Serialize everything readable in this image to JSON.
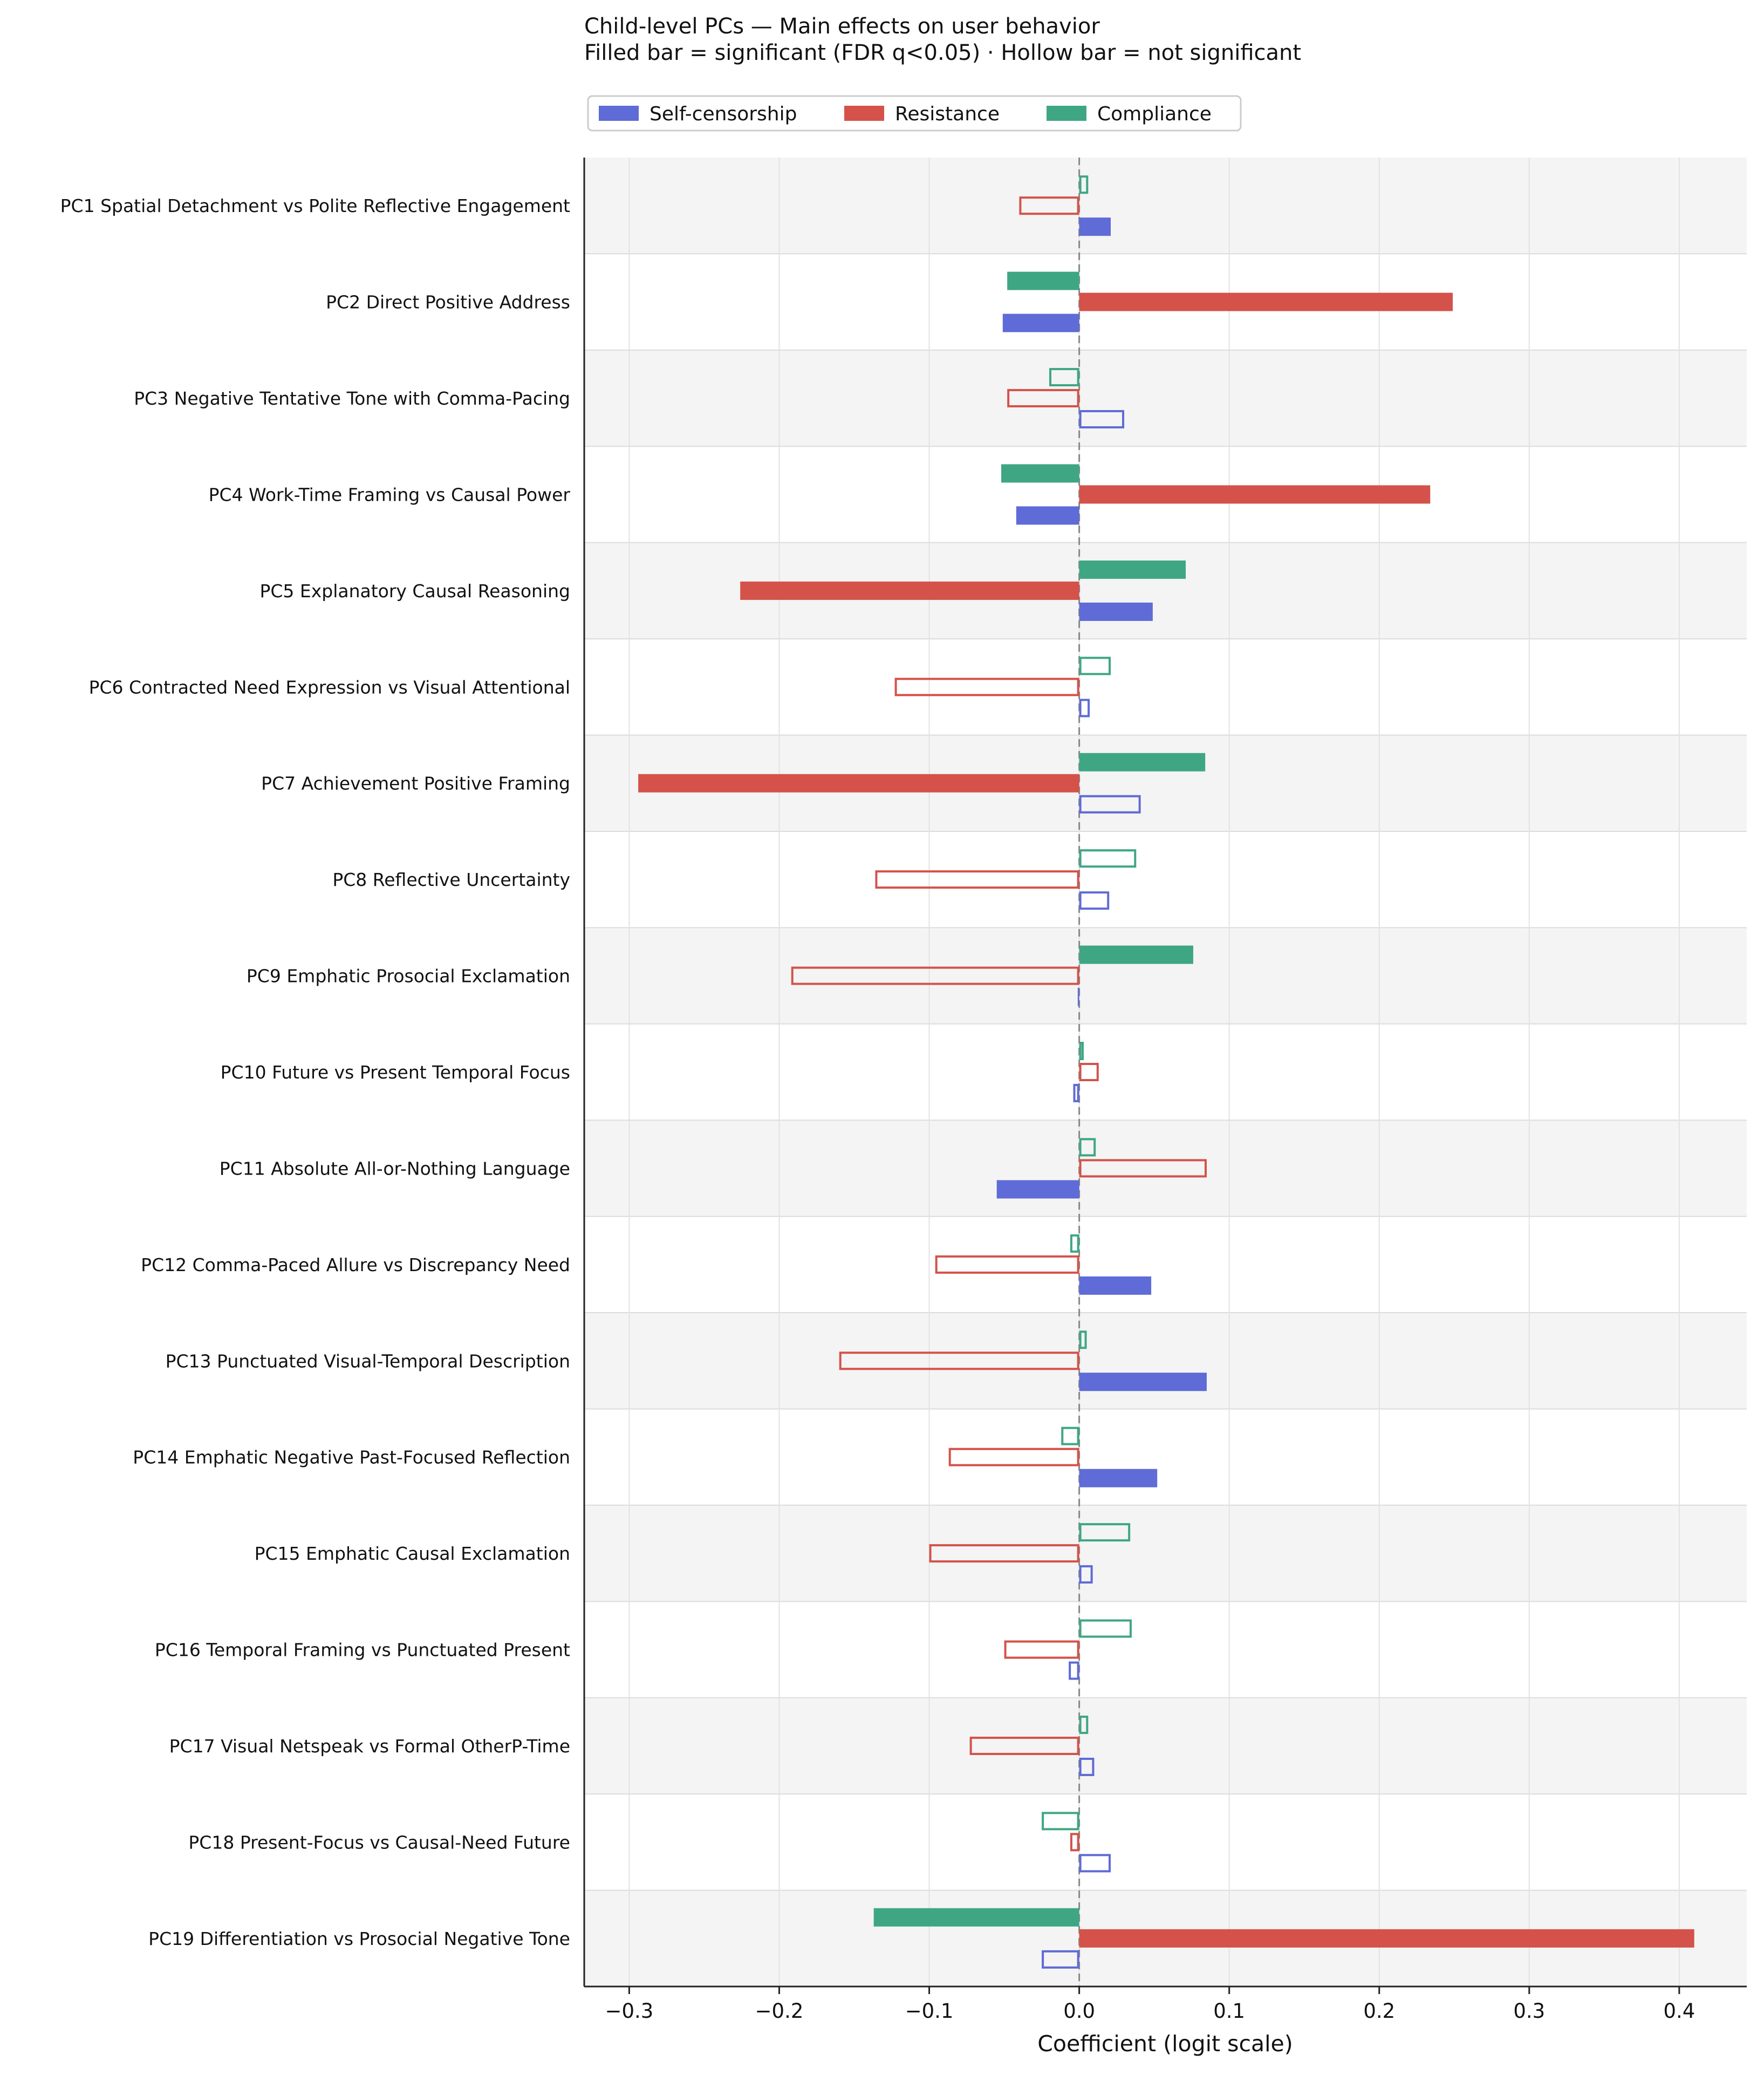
{
  "chart_data": {
    "type": "bar",
    "orientation": "horizontal",
    "title": "Child-level PCs — Main effects on user behavior",
    "subtitle": "Filled bar = significant (FDR q<0.05)  ·  Hollow bar = not significant",
    "xlabel": "Coefficient (logit scale)",
    "ylabel": "",
    "xlim": [
      -0.33,
      0.445
    ],
    "xticks": [
      -0.3,
      -0.2,
      -0.1,
      0.0,
      0.1,
      0.2,
      0.3,
      0.4
    ],
    "xtick_labels": [
      "−0.3",
      "−0.2",
      "−0.1",
      "0.0",
      "0.1",
      "0.2",
      "0.3",
      "0.4"
    ],
    "grid": "vertical",
    "alternating_row_bands": true,
    "zero_line": "dashed",
    "legend_position": "top-left",
    "categories": [
      "PC1  Spatial Detachment vs Polite Reflective Engagement",
      "PC2  Direct Positive Address",
      "PC3  Negative Tentative Tone with Comma-Pacing",
      "PC4  Work-Time Framing vs Causal Power",
      "PC5  Explanatory Causal Reasoning",
      "PC6  Contracted Need Expression vs Visual Attentional",
      "PC7  Achievement Positive Framing",
      "PC8  Reflective Uncertainty",
      "PC9  Emphatic Prosocial Exclamation",
      "PC10  Future vs Present Temporal Focus",
      "PC11  Absolute All-or-Nothing Language",
      "PC12  Comma-Paced Allure vs Discrepancy Need",
      "PC13  Punctuated Visual-Temporal Description",
      "PC14  Emphatic Negative Past-Focused Reflection",
      "PC15  Emphatic Causal Exclamation",
      "PC16  Temporal Framing vs Punctuated Present",
      "PC17  Visual Netspeak vs Formal OtherP-Time",
      "PC18  Present-Focus vs Causal-Need Future",
      "PC19  Differentiation vs Prosocial Negative Tone"
    ],
    "series": [
      {
        "name": "Self-censorship",
        "color": "#5f6bd6",
        "values": [
          0.021,
          -0.051,
          0.03,
          -0.042,
          0.049,
          0.007,
          0.041,
          0.02,
          -0.001,
          -0.004,
          -0.055,
          0.048,
          0.085,
          0.052,
          0.009,
          -0.007,
          0.01,
          0.021,
          -0.025
        ],
        "significant": [
          true,
          true,
          false,
          true,
          true,
          false,
          false,
          false,
          true,
          false,
          true,
          true,
          true,
          true,
          false,
          false,
          false,
          false,
          false
        ]
      },
      {
        "name": "Resistance",
        "color": "#d4524a",
        "values": [
          -0.04,
          0.249,
          -0.048,
          0.234,
          -0.226,
          -0.123,
          -0.294,
          -0.136,
          -0.192,
          0.013,
          0.085,
          -0.096,
          -0.16,
          -0.087,
          -0.1,
          -0.05,
          -0.073,
          -0.006,
          0.41
        ],
        "significant": [
          false,
          true,
          false,
          true,
          true,
          false,
          true,
          false,
          false,
          false,
          false,
          false,
          false,
          false,
          false,
          false,
          false,
          false,
          true
        ]
      },
      {
        "name": "Compliance",
        "color": "#3fa684",
        "values": [
          0.006,
          -0.048,
          -0.02,
          -0.052,
          0.071,
          0.021,
          0.084,
          0.038,
          0.076,
          0.003,
          0.011,
          -0.006,
          0.005,
          -0.012,
          0.034,
          0.035,
          0.006,
          -0.025,
          -0.137
        ],
        "significant": [
          false,
          true,
          false,
          true,
          true,
          false,
          true,
          false,
          true,
          false,
          false,
          false,
          false,
          false,
          false,
          false,
          false,
          false,
          true
        ]
      }
    ]
  }
}
